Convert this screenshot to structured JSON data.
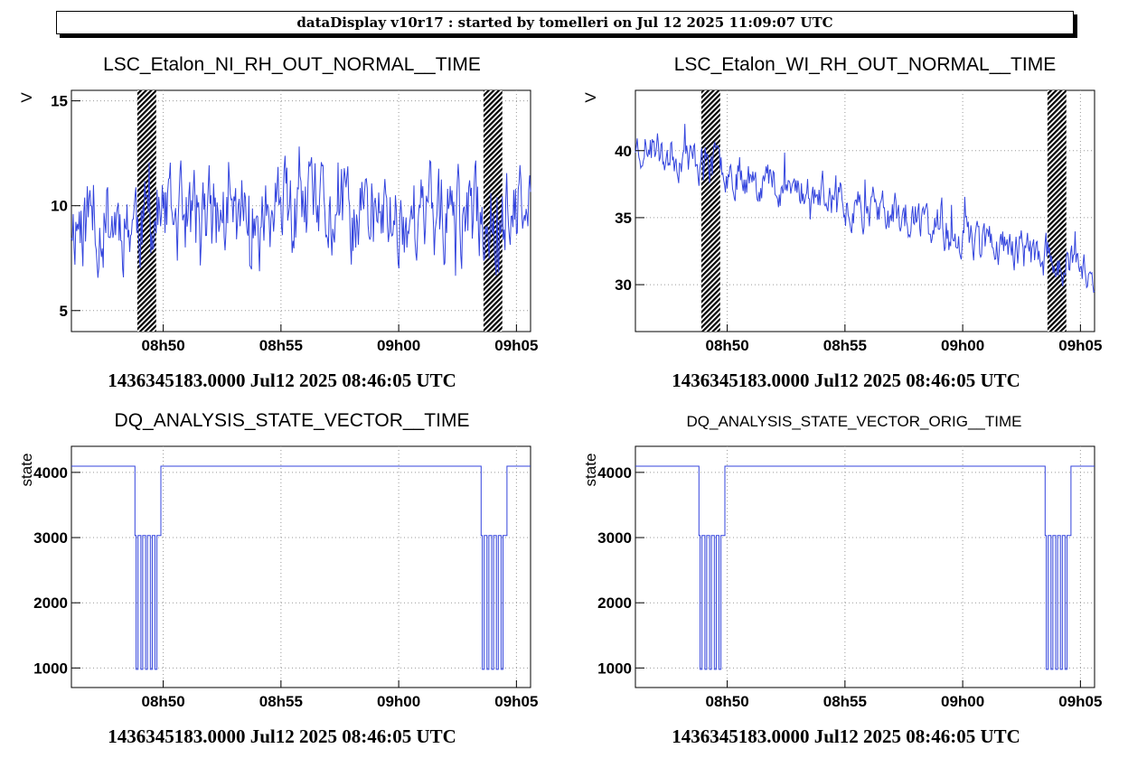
{
  "banner": "dataDisplay v10r17 : started by tomelleri on Jul 12 2025 11:09:07 UTC",
  "colors": {
    "trace": "#3344dd",
    "grid": "#999999",
    "hatch": "#000000"
  },
  "chart_data": [
    {
      "type": "line",
      "title": "LSC_Etalon_NI_RH_OUT_NORMAL__TIME",
      "ylabel": "V",
      "x_unit": "minutes after 08h46:05 UTC",
      "xlim": [
        0,
        19.5
      ],
      "ylim": [
        4.0,
        15.5
      ],
      "x_ticks": [
        3.9,
        8.9,
        13.9,
        18.9
      ],
      "x_tick_labels": [
        "08h50",
        "08h55",
        "09h00",
        "09h05"
      ],
      "y_ticks": [
        5,
        10,
        15
      ],
      "y_tick_labels": [
        "5",
        "10",
        "15"
      ],
      "gaps": [
        [
          2.8,
          3.6
        ],
        [
          17.5,
          18.3
        ]
      ],
      "footer": "1436345183.0000 Jul12 2025 08:46:05 UTC",
      "series": [
        {
          "kind": "noise",
          "mean": 9.4,
          "amp": 2.6,
          "spikes": 4.5,
          "seed": 11
        }
      ]
    },
    {
      "type": "line",
      "title": "LSC_Etalon_WI_RH_OUT_NORMAL__TIME",
      "ylabel": "V",
      "x_unit": "minutes after 08h46:05 UTC",
      "xlim": [
        0,
        19.5
      ],
      "ylim": [
        26.5,
        44.5
      ],
      "x_ticks": [
        3.9,
        8.9,
        13.9,
        18.9
      ],
      "x_tick_labels": [
        "08h50",
        "08h55",
        "09h00",
        "09h05"
      ],
      "y_ticks": [
        30,
        35,
        40
      ],
      "y_tick_labels": [
        "30",
        "35",
        "40"
      ],
      "gaps": [
        [
          2.8,
          3.6
        ],
        [
          17.5,
          18.3
        ]
      ],
      "footer": "1436345183.0000 Jul12 2025 08:46:05 UTC",
      "series": [
        {
          "kind": "trend",
          "start": 40.5,
          "end": 31.0,
          "amp": 1.8,
          "spikes": 3.0,
          "seed": 23
        }
      ]
    },
    {
      "type": "line",
      "title": "DQ_ANALYSIS_STATE_VECTOR__TIME",
      "ylabel": "state",
      "x_unit": "minutes after 08h46:05 UTC",
      "xlim": [
        0,
        19.5
      ],
      "ylim": [
        700,
        4400
      ],
      "x_ticks": [
        3.9,
        8.9,
        13.9,
        18.9
      ],
      "x_tick_labels": [
        "08h50",
        "08h55",
        "09h00",
        "09h05"
      ],
      "y_ticks": [
        1000,
        2000,
        3000,
        4000
      ],
      "y_tick_labels": [
        "1000",
        "2000",
        "3000",
        "4000"
      ],
      "footer": "1436345183.0000 Jul12 2025 08:46:05 UTC",
      "series": [
        {
          "kind": "state",
          "high": 4095,
          "mid": 3031,
          "low": 979,
          "drops": [
            [
              2.7,
              3.8,
              [
                2.75,
                2.95,
                3.15,
                3.35,
                3.55
              ]
            ],
            [
              17.4,
              18.5,
              [
                17.45,
                17.65,
                17.85,
                18.05,
                18.25
              ]
            ]
          ]
        }
      ]
    },
    {
      "type": "line",
      "title": "DQ_ANALYSIS_STATE_VECTOR_ORIG__TIME",
      "ylabel": "state",
      "x_unit": "minutes after 08h46:05 UTC",
      "xlim": [
        0,
        19.5
      ],
      "ylim": [
        700,
        4400
      ],
      "x_ticks": [
        3.9,
        8.9,
        13.9,
        18.9
      ],
      "x_tick_labels": [
        "08h50",
        "08h55",
        "09h00",
        "09h05"
      ],
      "y_ticks": [
        1000,
        2000,
        3000,
        4000
      ],
      "y_tick_labels": [
        "1000",
        "2000",
        "3000",
        "4000"
      ],
      "footer": "1436345183.0000 Jul12 2025 08:46:05 UTC",
      "series": [
        {
          "kind": "state",
          "high": 4095,
          "mid": 3031,
          "low": 979,
          "drops": [
            [
              2.7,
              3.8,
              [
                2.75,
                2.95,
                3.15,
                3.35,
                3.55
              ]
            ],
            [
              17.4,
              18.5,
              [
                17.45,
                17.65,
                17.85,
                18.05,
                18.25
              ]
            ]
          ]
        }
      ]
    }
  ]
}
